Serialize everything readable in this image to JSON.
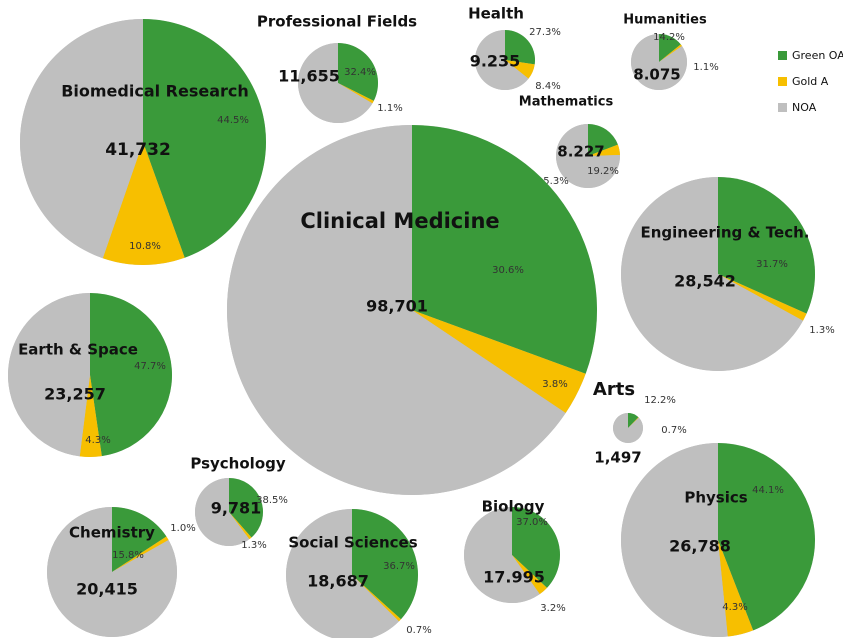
{
  "legend": {
    "labels": [
      "Green OA",
      "Gold A",
      "NOA"
    ],
    "colors": [
      "#3a9a3a",
      "#f7bf00",
      "#bfbfbf"
    ]
  },
  "chart_data": [
    {
      "type": "pie",
      "title": "Biomedical Research",
      "total": "41,732",
      "values": [
        44.5,
        10.8,
        44.7
      ],
      "value_labels": [
        "44.5%",
        "10.8%",
        null
      ]
    },
    {
      "type": "pie",
      "title": "Professional Fields",
      "total": "11,655",
      "values": [
        32.4,
        1.1,
        66.5
      ],
      "value_labels": [
        "32.4%",
        "1.1%",
        null
      ]
    },
    {
      "type": "pie",
      "title": "Health",
      "total": "9.235",
      "values": [
        27.3,
        8.4,
        64.3
      ],
      "value_labels": [
        "27.3%",
        "8.4%",
        null
      ]
    },
    {
      "type": "pie",
      "title": "Humanities",
      "total": "8.075",
      "values": [
        14.2,
        1.1,
        84.7
      ],
      "value_labels": [
        "14.2%",
        "1.1%",
        null
      ]
    },
    {
      "type": "pie",
      "title": "Mathematics",
      "total": "8.227",
      "values": [
        19.2,
        5.3,
        75.5
      ],
      "value_labels": [
        "19.2%",
        "5.3%",
        null
      ]
    },
    {
      "type": "pie",
      "title": "Clinical Medicine",
      "total": "98,701",
      "values": [
        30.6,
        3.8,
        65.6
      ],
      "value_labels": [
        "30.6%",
        "3.8%",
        null
      ]
    },
    {
      "type": "pie",
      "title": "Engineering & Tech.",
      "total": "28,542",
      "values": [
        31.7,
        1.3,
        67.0
      ],
      "value_labels": [
        "31.7%",
        "1.3%",
        null
      ]
    },
    {
      "type": "pie",
      "title": "Earth & Space",
      "total": "23,257",
      "values": [
        47.7,
        4.3,
        48.0
      ],
      "value_labels": [
        "47.7%",
        "4.3%",
        null
      ]
    },
    {
      "type": "pie",
      "title": "Arts",
      "total": "1,497",
      "values": [
        12.2,
        0.7,
        87.1
      ],
      "value_labels": [
        "12.2%",
        "0.7%",
        null
      ]
    },
    {
      "type": "pie",
      "title": "Physics",
      "total": "26,788",
      "values": [
        44.1,
        4.3,
        51.6
      ],
      "value_labels": [
        "44.1%",
        "4.3%",
        null
      ]
    },
    {
      "type": "pie",
      "title": "Psychology",
      "total": "9,781",
      "values": [
        38.5,
        1.3,
        60.2
      ],
      "value_labels": [
        "38.5%",
        "1.3%",
        null
      ]
    },
    {
      "type": "pie",
      "title": "Chemistry",
      "total": "20,415",
      "values": [
        15.8,
        1.0,
        83.2
      ],
      "value_labels": [
        "15.8%",
        "1.0%",
        null
      ]
    },
    {
      "type": "pie",
      "title": "Social Sciences",
      "total": "18,687",
      "values": [
        36.7,
        0.7,
        62.6
      ],
      "value_labels": [
        "36.7%",
        "0.7%",
        null
      ]
    },
    {
      "type": "pie",
      "title": "Biology",
      "total": "17.995",
      "values": [
        37.0,
        3.2,
        59.8
      ],
      "value_labels": [
        "37.0%",
        "3.2%",
        null
      ]
    }
  ]
}
